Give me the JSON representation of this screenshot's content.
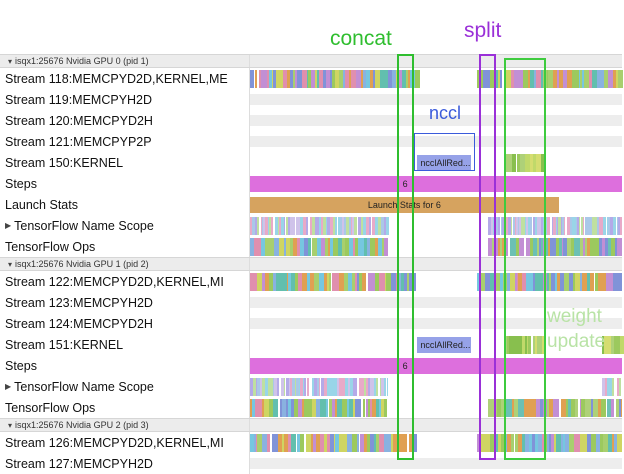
{
  "annotations": {
    "concat": "concat",
    "split": "split",
    "nccl": "nccl",
    "weight_line1": "weight",
    "weight_line2": "update"
  },
  "colors": {
    "concat": "#2fbe2f",
    "split": "#9a30d8",
    "nccl": "#3b5bdb",
    "weight_text": "#b9e3a6",
    "steps": "#dd6fdd",
    "launch": "#d6a35f",
    "nccl_bar": "#96a2e8",
    "idle": "#ededed"
  },
  "palettes": {
    "mix": {
      "colors": [
        "#89b2e0",
        "#9cc95e",
        "#c28fd4",
        "#e0a052",
        "#62bfae",
        "#a8cf6e",
        "#e08fae",
        "#8093d8",
        "#cfd562",
        "#76c7e0"
      ],
      "min": 1.5,
      "max": 5,
      "gap": 0.06
    },
    "scope": {
      "colors": [
        "#aac8e8",
        "#e8aac8",
        "#bfe0a0",
        "#b4aae8",
        "#99d5e8",
        "#cfc3ea"
      ],
      "min": 1,
      "max": 3,
      "gap": 0.12
    },
    "green": {
      "colors": [
        "#9cc95e",
        "#aed178",
        "#c0d96a",
        "#88bf4e",
        "#d5dd70"
      ],
      "min": 1.5,
      "max": 4,
      "gap": 0.08
    },
    "opsR": {
      "colors": [
        "#6cc0b4",
        "#9cc95e",
        "#c28fd4",
        "#8093d8",
        "#aed178",
        "#e0a052"
      ],
      "min": 1.5,
      "max": 4.5,
      "gap": 0.08
    }
  },
  "rows": [
    {
      "type": "header",
      "arrow": "▾",
      "label": "isqx1:25676 Nvidia GPU 0 (pid 1)",
      "segments": []
    },
    {
      "type": "track",
      "label": "Stream 118:MEMCPYD2D,KERNEL,ME",
      "segments": [
        {
          "kind": "dense",
          "palette": "mix",
          "from": 0,
          "to": 44.5
        },
        {
          "kind": "dense",
          "palette": "mix",
          "from": 61,
          "to": 100
        }
      ]
    },
    {
      "type": "track",
      "label": "Stream 119:MEMCPYH2D",
      "segments": [
        {
          "kind": "idle",
          "from": 0,
          "to": 100
        }
      ]
    },
    {
      "type": "track",
      "label": "Stream 120:MEMCPYD2H",
      "segments": [
        {
          "kind": "idle",
          "from": 0,
          "to": 100
        }
      ]
    },
    {
      "type": "track",
      "label": "Stream 121:MEMCPYP2P",
      "segments": [
        {
          "kind": "idle",
          "from": 0,
          "to": 100
        }
      ]
    },
    {
      "type": "track",
      "label": "Stream 150:KERNEL",
      "segments": [
        {
          "kind": "solid",
          "color_key": "nccl_bar",
          "from": 45,
          "to": 59.5,
          "label": "ncclAllRed...",
          "label_align": "left"
        },
        {
          "kind": "dense",
          "palette": "green",
          "from": 68.5,
          "to": 79.5
        }
      ]
    },
    {
      "type": "track",
      "label": "Steps",
      "segments": [
        {
          "kind": "solid",
          "color_key": "steps",
          "from": 0,
          "to": 100,
          "label": "6",
          "label_at": 41.7
        }
      ]
    },
    {
      "type": "track",
      "label": "Launch Stats",
      "segments": [
        {
          "kind": "solid",
          "color_key": "launch",
          "from": 0,
          "to": 83,
          "label": "Launch Stats for 6"
        }
      ]
    },
    {
      "type": "track",
      "arrow": "▶",
      "label": "TensorFlow Name Scope",
      "segments": [
        {
          "kind": "dense",
          "palette": "scope",
          "from": 0,
          "to": 37
        },
        {
          "kind": "dense",
          "palette": "scope",
          "from": 64,
          "to": 100
        }
      ]
    },
    {
      "type": "track",
      "label": "TensorFlow Ops",
      "segments": [
        {
          "kind": "dense",
          "palette": "mix",
          "from": 0,
          "to": 37
        },
        {
          "kind": "dense",
          "palette": "opsR",
          "from": 64,
          "to": 100
        }
      ]
    },
    {
      "type": "header",
      "arrow": "▾",
      "label": "isqx1:25676 Nvidia GPU 1 (pid 2)",
      "segments": []
    },
    {
      "type": "track",
      "label": "Stream 122:MEMCPYD2D,KERNEL,MI",
      "segments": [
        {
          "kind": "dense",
          "palette": "mix",
          "from": 0,
          "to": 44.5
        },
        {
          "kind": "dense",
          "palette": "mix",
          "from": 61,
          "to": 100
        }
      ]
    },
    {
      "type": "track",
      "label": "Stream 123:MEMCPYH2D",
      "segments": [
        {
          "kind": "idle",
          "from": 0,
          "to": 100
        }
      ]
    },
    {
      "type": "track",
      "label": "Stream 124:MEMCPYD2H",
      "segments": [
        {
          "kind": "idle",
          "from": 0,
          "to": 100
        }
      ]
    },
    {
      "type": "track",
      "label": "Stream 151:KERNEL",
      "segments": [
        {
          "kind": "solid",
          "color_key": "nccl_bar",
          "from": 45,
          "to": 59.5,
          "label": "ncclAllRed...",
          "label_align": "left"
        },
        {
          "kind": "dense",
          "palette": "green",
          "from": 68.5,
          "to": 79.5
        },
        {
          "kind": "dense",
          "palette": "green",
          "from": 94.5,
          "to": 100
        }
      ]
    },
    {
      "type": "track",
      "label": "Steps",
      "segments": [
        {
          "kind": "solid",
          "color_key": "steps",
          "from": 0,
          "to": 100,
          "label": "6",
          "label_at": 41.7
        }
      ]
    },
    {
      "type": "track",
      "arrow": "▶",
      "label": "TensorFlow Name Scope",
      "segments": [
        {
          "kind": "dense",
          "palette": "scope",
          "from": 0,
          "to": 37
        },
        {
          "kind": "dense",
          "palette": "scope",
          "from": 94.5,
          "to": 100
        }
      ]
    },
    {
      "type": "track",
      "label": "TensorFlow Ops",
      "segments": [
        {
          "kind": "dense",
          "palette": "mix",
          "from": 0,
          "to": 37
        },
        {
          "kind": "dense",
          "palette": "opsR",
          "from": 64,
          "to": 100
        }
      ]
    },
    {
      "type": "header",
      "arrow": "▾",
      "label": "isqx1:25676 Nvidia GPU 2 (pid 3)",
      "segments": []
    },
    {
      "type": "track",
      "label": "Stream 126:MEMCPYD2D,KERNEL,MI",
      "segments": [
        {
          "kind": "dense",
          "palette": "mix",
          "from": 0,
          "to": 44.5
        },
        {
          "kind": "dense",
          "palette": "mix",
          "from": 61,
          "to": 100
        }
      ]
    },
    {
      "type": "track",
      "label": "Stream 127:MEMCPYH2D",
      "segments": [
        {
          "kind": "idle",
          "from": 0,
          "to": 100
        }
      ]
    }
  ]
}
